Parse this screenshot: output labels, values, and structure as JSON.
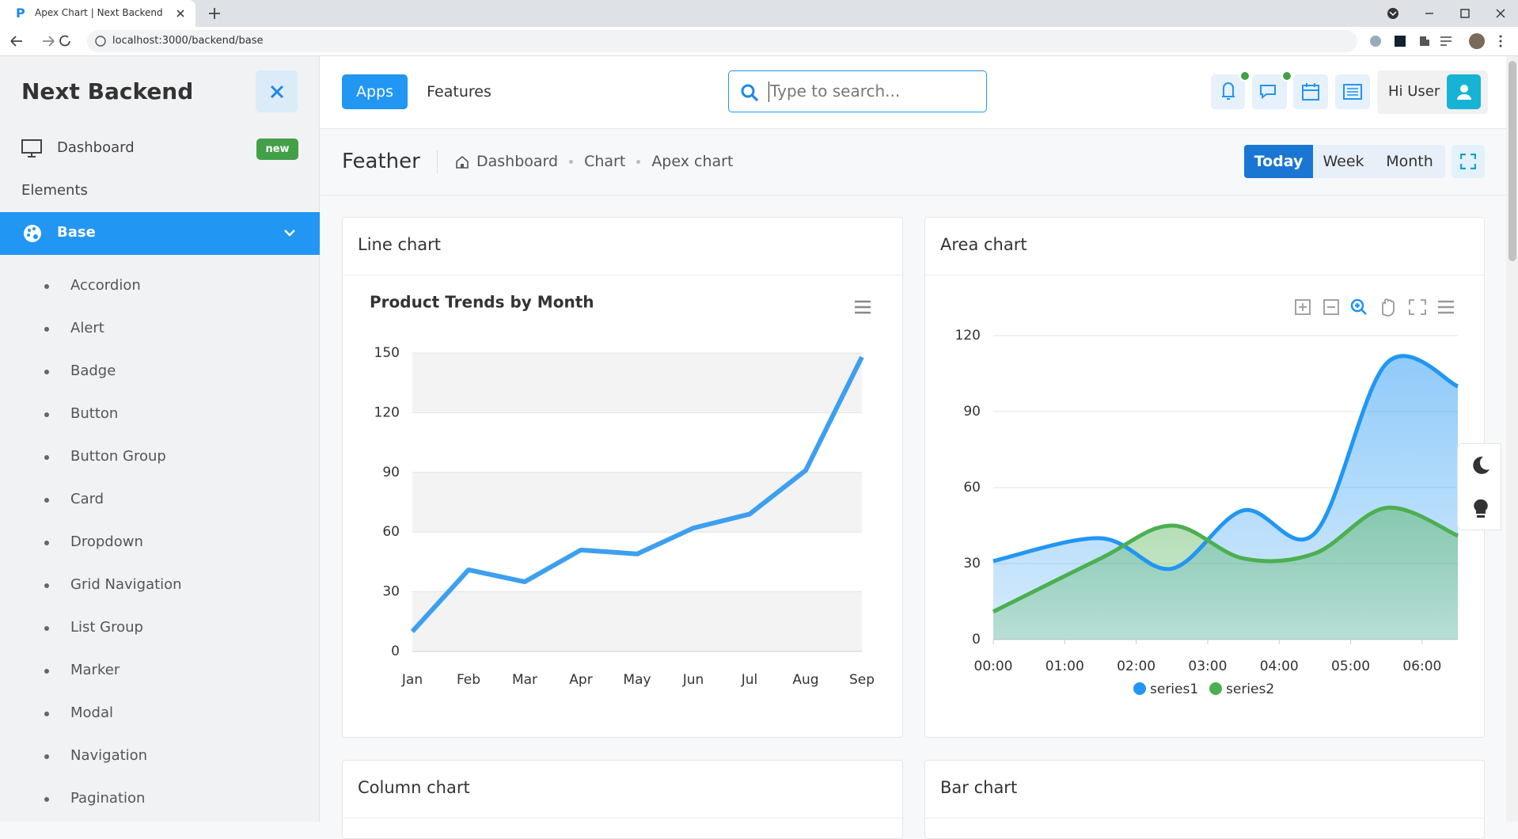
{
  "browser": {
    "tab_title": "Apex Chart | Next Backend",
    "url": "localhost:3000/backend/base"
  },
  "sidebar": {
    "brand": "Next Backend",
    "items": [
      {
        "label": "Dashboard",
        "badge": "new"
      }
    ],
    "section": "Elements",
    "active": "Base",
    "subitems": [
      "Accordion",
      "Alert",
      "Badge",
      "Button",
      "Button Group",
      "Card",
      "Dropdown",
      "Grid Navigation",
      "List Group",
      "Marker",
      "Modal",
      "Navigation",
      "Pagination"
    ]
  },
  "topbar": {
    "nav": [
      "Apps",
      "Features"
    ],
    "search_placeholder": "Type to search...",
    "user": "Hi User"
  },
  "header": {
    "title": "Feather",
    "breadcrumb": [
      "Dashboard",
      "Chart",
      "Apex chart"
    ],
    "ranges": [
      "Today",
      "Week",
      "Month"
    ]
  },
  "cards": [
    "Line chart",
    "Area chart",
    "Column chart",
    "Bar chart"
  ],
  "chart_data": [
    {
      "type": "line",
      "title": "Product Trends by Month",
      "curve": "straight",
      "categories": [
        "Jan",
        "Feb",
        "Mar",
        "Apr",
        "May",
        "Jun",
        "Jul",
        "Aug",
        "Sep"
      ],
      "values": [
        10,
        41,
        35,
        51,
        49,
        62,
        69,
        91,
        148
      ],
      "color": "#3d9ff0",
      "ylim": [
        0,
        150
      ],
      "yticks": [
        0,
        30,
        60,
        90,
        120,
        150
      ],
      "grid": true
    },
    {
      "type": "area",
      "curve": "smooth",
      "x": [
        0,
        1.5,
        2.5,
        3.5,
        4.5,
        5.5,
        6.5
      ],
      "series": [
        {
          "name": "series1",
          "color": "#2196f3",
          "values": [
            31,
            40,
            28,
            51,
            42,
            109,
            100
          ]
        },
        {
          "name": "series2",
          "color": "#4caf50",
          "values": [
            11,
            32,
            45,
            32,
            34,
            52,
            41
          ]
        }
      ],
      "xlim": [
        0,
        6.5
      ],
      "xticks": [
        {
          "value": 0,
          "label": "00:00"
        },
        {
          "value": 1,
          "label": "01:00"
        },
        {
          "value": 2,
          "label": "02:00"
        },
        {
          "value": 3,
          "label": "03:00"
        },
        {
          "value": 4,
          "label": "04:00"
        },
        {
          "value": 5,
          "label": "05:00"
        },
        {
          "value": 6,
          "label": "06:00"
        }
      ],
      "ylim": [
        0,
        120
      ],
      "yticks": [
        0,
        30,
        60,
        90,
        120
      ],
      "grid": true,
      "legend": "bottom"
    }
  ]
}
